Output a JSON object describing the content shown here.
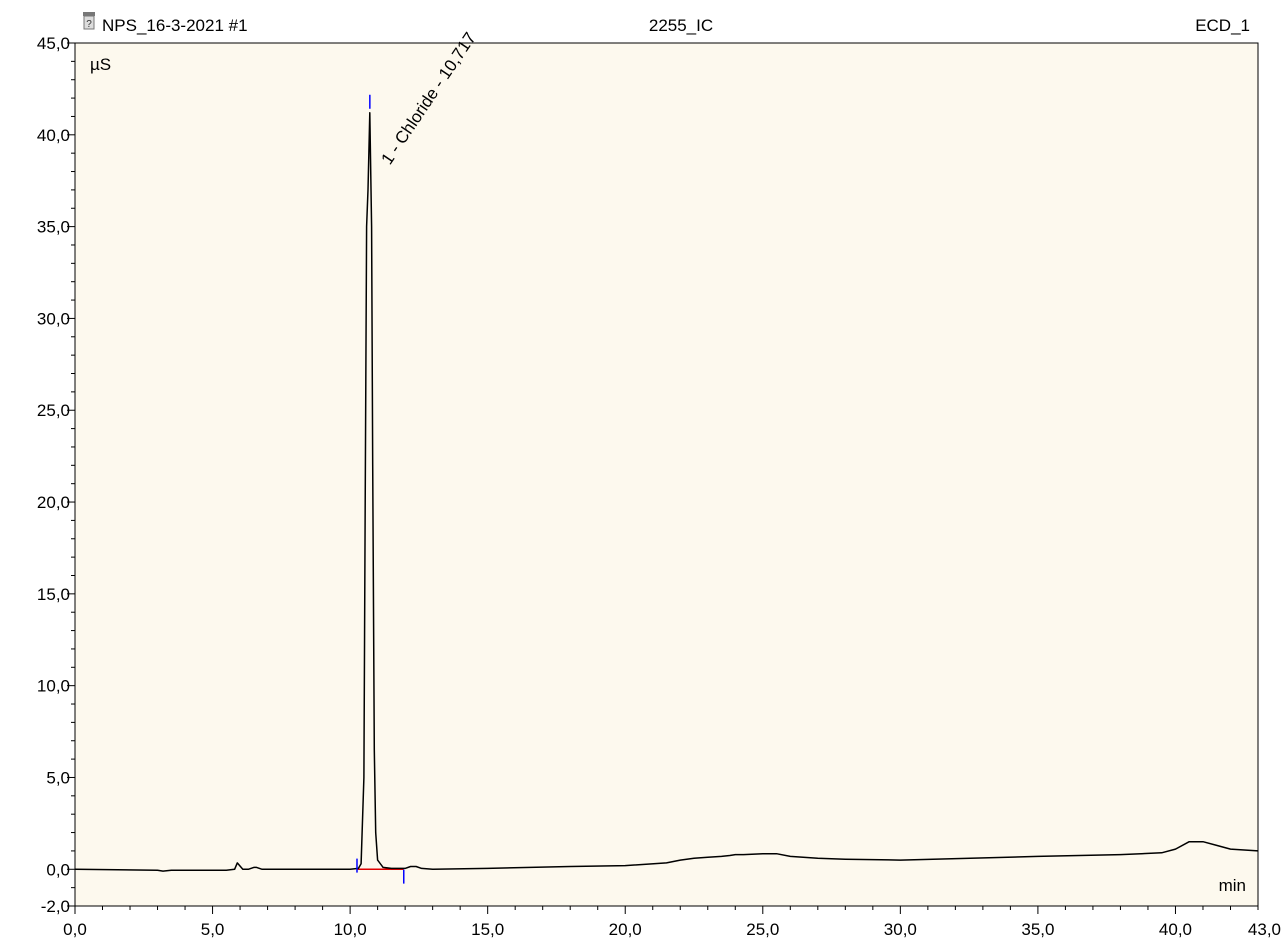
{
  "header": {
    "left_title": "NPS_16-3-2021 #1",
    "center_title": "2255_IC",
    "right_title": "ECD_1",
    "icon": "vial-icon"
  },
  "colors": {
    "plot_bg": "#fdf9ee",
    "trace": "#000000",
    "baseline": "#e00000",
    "markers": "#0000ff"
  },
  "chart_data": {
    "type": "line",
    "title": "",
    "xlabel": "min",
    "ylabel": "µS",
    "xlim": [
      0.0,
      43.0
    ],
    "ylim": [
      -2.0,
      45.0
    ],
    "x_ticks": [
      "0,0",
      "5,0",
      "10,0",
      "15,0",
      "20,0",
      "25,0",
      "30,0",
      "35,0",
      "40,0",
      "43,0"
    ],
    "x_tick_values": [
      0,
      5,
      10,
      15,
      20,
      25,
      30,
      35,
      40,
      43
    ],
    "y_ticks": [
      "-2,0",
      "0,0",
      "5,0",
      "10,0",
      "15,0",
      "20,0",
      "25,0",
      "30,0",
      "35,0",
      "40,0",
      "45,0"
    ],
    "y_tick_values": [
      -2,
      0,
      5,
      10,
      15,
      20,
      25,
      30,
      35,
      40,
      45
    ],
    "grid": false,
    "series": [
      {
        "x": [
          0.0,
          3.0,
          3.2,
          3.5,
          5.5,
          5.8,
          5.9,
          6.1,
          6.3,
          6.5,
          6.6,
          6.8,
          7.0,
          10.0,
          10.3,
          10.4,
          10.5,
          10.55,
          10.6,
          10.65,
          10.717,
          10.78,
          10.82,
          10.88,
          10.93,
          11.0,
          11.2,
          11.5,
          12.0,
          12.2,
          12.4,
          12.6,
          13.0,
          15.0,
          18.0,
          20.0,
          21.5,
          22.0,
          22.5,
          23.0,
          23.5,
          23.8,
          24.0,
          24.3,
          25.0,
          25.5,
          26.0,
          27.0,
          28.0,
          30.0,
          35.0,
          38.0,
          39.5,
          40.0,
          40.5,
          41.0,
          41.5,
          42.0,
          43.0
        ],
        "y": [
          0.0,
          -0.05,
          -0.1,
          -0.05,
          -0.05,
          0.0,
          0.35,
          0.0,
          0.0,
          0.1,
          0.1,
          0.0,
          0.0,
          0.0,
          0.05,
          0.3,
          5.0,
          20.0,
          35.0,
          37.0,
          41.2,
          35.0,
          22.0,
          6.5,
          2.0,
          0.5,
          0.1,
          0.05,
          0.05,
          0.15,
          0.15,
          0.05,
          0.0,
          0.05,
          0.15,
          0.2,
          0.35,
          0.5,
          0.6,
          0.65,
          0.7,
          0.75,
          0.8,
          0.8,
          0.85,
          0.85,
          0.7,
          0.6,
          0.55,
          0.5,
          0.7,
          0.8,
          0.9,
          1.1,
          1.5,
          1.5,
          1.3,
          1.1,
          1.0
        ]
      }
    ],
    "baseline_segment": {
      "x": [
        10.25,
        11.95
      ],
      "y": [
        0.0,
        0.0
      ]
    },
    "peak_markers": [
      {
        "x": 10.25,
        "y": 0.2,
        "type": "start"
      },
      {
        "x": 10.717,
        "y": 41.8,
        "type": "apex"
      },
      {
        "x": 11.95,
        "y": -0.4,
        "type": "end"
      }
    ],
    "annotations": [
      {
        "text": "1 - Chloride - 10,717",
        "x": 10.717,
        "y": 41.2
      }
    ]
  }
}
